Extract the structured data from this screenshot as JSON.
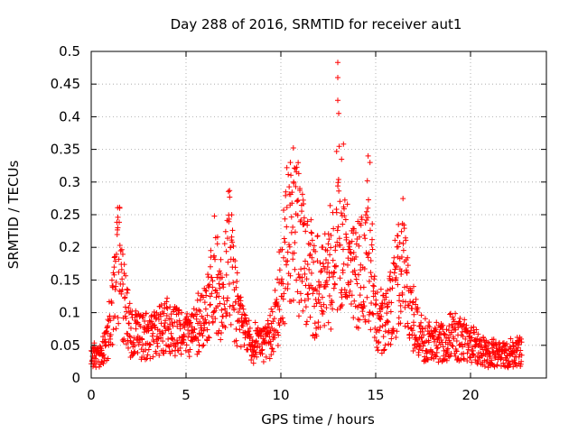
{
  "chart_data": {
    "type": "scatter",
    "title": "Day 288 of 2016, SRMTID for receiver aut1",
    "xlabel": "GPS time / hours",
    "ylabel": "SRMTID / TECUs",
    "xlim": [
      0,
      24
    ],
    "ylim": [
      0,
      0.5
    ],
    "x_ticks": [
      0,
      5,
      10,
      15,
      20
    ],
    "y_ticks": [
      0,
      0.05,
      0.1,
      0.15,
      0.2,
      0.25,
      0.3,
      0.35,
      0.4,
      0.45,
      0.5
    ],
    "grid": true,
    "marker": "+",
    "series": [
      {
        "name": "aut1",
        "color": "#ff0000",
        "x_range": [
          0,
          22.7
        ],
        "profile": [
          {
            "x": 0.0,
            "y": 0.033
          },
          {
            "x": 0.4,
            "y": 0.03
          },
          {
            "x": 0.8,
            "y": 0.05
          },
          {
            "x": 1.1,
            "y": 0.1
          },
          {
            "x": 1.4,
            "y": 0.17
          },
          {
            "x": 1.7,
            "y": 0.12
          },
          {
            "x": 2.0,
            "y": 0.07
          },
          {
            "x": 3.0,
            "y": 0.06
          },
          {
            "x": 4.0,
            "y": 0.08
          },
          {
            "x": 5.0,
            "y": 0.06
          },
          {
            "x": 6.0,
            "y": 0.09
          },
          {
            "x": 6.5,
            "y": 0.15
          },
          {
            "x": 6.9,
            "y": 0.1
          },
          {
            "x": 7.3,
            "y": 0.2
          },
          {
            "x": 7.6,
            "y": 0.11
          },
          {
            "x": 8.0,
            "y": 0.07
          },
          {
            "x": 8.5,
            "y": 0.05
          },
          {
            "x": 9.2,
            "y": 0.05
          },
          {
            "x": 9.8,
            "y": 0.09
          },
          {
            "x": 10.3,
            "y": 0.2
          },
          {
            "x": 10.8,
            "y": 0.22
          },
          {
            "x": 11.3,
            "y": 0.17
          },
          {
            "x": 11.8,
            "y": 0.13
          },
          {
            "x": 12.4,
            "y": 0.13
          },
          {
            "x": 13.0,
            "y": 0.22
          },
          {
            "x": 13.4,
            "y": 0.16
          },
          {
            "x": 14.0,
            "y": 0.15
          },
          {
            "x": 14.6,
            "y": 0.2
          },
          {
            "x": 15.0,
            "y": 0.09
          },
          {
            "x": 15.5,
            "y": 0.08
          },
          {
            "x": 16.0,
            "y": 0.13
          },
          {
            "x": 16.4,
            "y": 0.17
          },
          {
            "x": 16.8,
            "y": 0.1
          },
          {
            "x": 17.3,
            "y": 0.06
          },
          {
            "x": 18.0,
            "y": 0.05
          },
          {
            "x": 19.0,
            "y": 0.06
          },
          {
            "x": 20.0,
            "y": 0.05
          },
          {
            "x": 21.0,
            "y": 0.035
          },
          {
            "x": 22.0,
            "y": 0.035
          },
          {
            "x": 22.7,
            "y": 0.04
          }
        ],
        "notable_points": [
          {
            "x": 1.4,
            "y": 0.23
          },
          {
            "x": 7.3,
            "y": 0.277
          },
          {
            "x": 10.5,
            "y": 0.33
          },
          {
            "x": 11.0,
            "y": 0.29
          },
          {
            "x": 13.0,
            "y": 0.483
          },
          {
            "x": 13.0,
            "y": 0.46
          },
          {
            "x": 13.0,
            "y": 0.425
          },
          {
            "x": 13.05,
            "y": 0.405
          },
          {
            "x": 13.3,
            "y": 0.358
          },
          {
            "x": 13.2,
            "y": 0.335
          },
          {
            "x": 14.6,
            "y": 0.34
          },
          {
            "x": 14.7,
            "y": 0.33
          },
          {
            "x": 16.2,
            "y": 0.235
          },
          {
            "x": 17.0,
            "y": 0.14
          }
        ]
      }
    ]
  }
}
